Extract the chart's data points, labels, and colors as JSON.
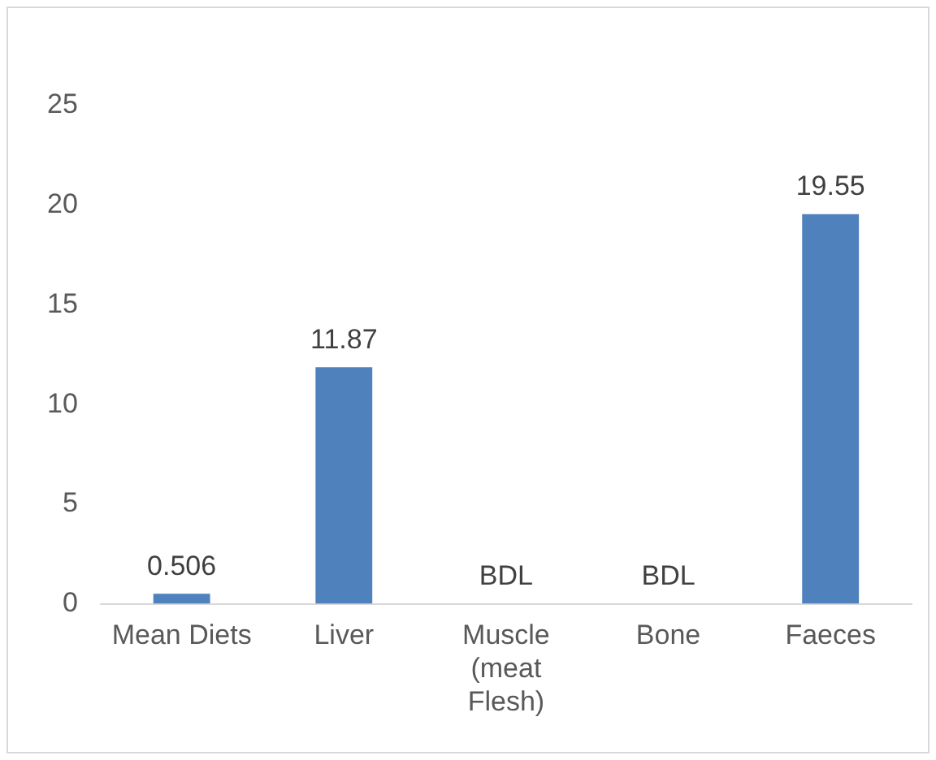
{
  "chart_data": {
    "type": "bar",
    "categories": [
      "Mean Diets",
      "Liver",
      "Muscle (meat Flesh)",
      "Bone",
      "Faeces"
    ],
    "series": [
      {
        "color": "#4f81bd",
        "values": [
          0.506,
          11.87,
          null,
          null,
          19.55
        ],
        "value_labels": [
          "0.506",
          "11.87",
          "BDL",
          "BDL",
          "19.55"
        ]
      }
    ],
    "ylim": [
      0,
      25
    ],
    "yticks": [
      0,
      5,
      10,
      15,
      20,
      25
    ],
    "grid": false,
    "legend": false
  }
}
